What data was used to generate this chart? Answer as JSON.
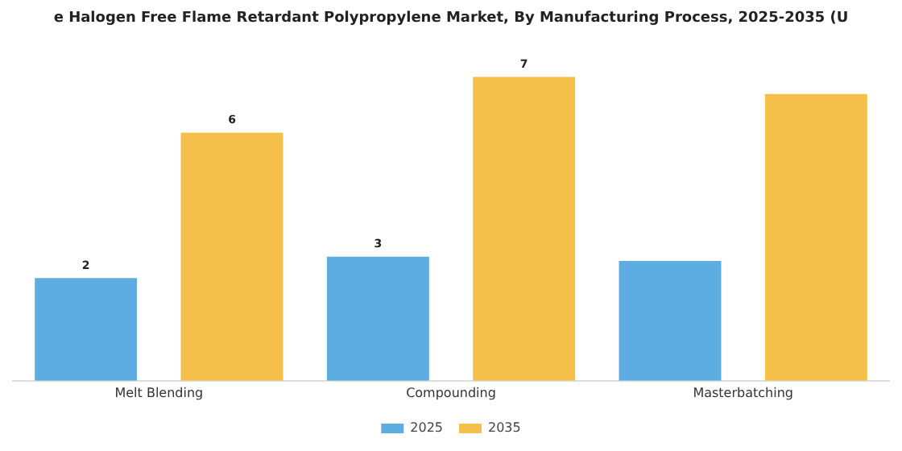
{
  "chart_data": {
    "type": "bar",
    "title": "e Halogen Free Flame Retardant Polypropylene Market, By Manufacturing Process, 2025-2035 (U",
    "categories": [
      "Melt Blending",
      "Compounding",
      "Masterbatching"
    ],
    "series": [
      {
        "name": "2025",
        "color": "#5dade2",
        "values": [
          2.4,
          2.9,
          2.8
        ],
        "value_labels": [
          "2",
          "3",
          null
        ]
      },
      {
        "name": "2035",
        "color": "#f5c04a",
        "values": [
          5.8,
          7.1,
          6.7
        ],
        "value_labels": [
          "6",
          "7",
          null
        ]
      }
    ],
    "legend": "bottom",
    "grid": false
  }
}
